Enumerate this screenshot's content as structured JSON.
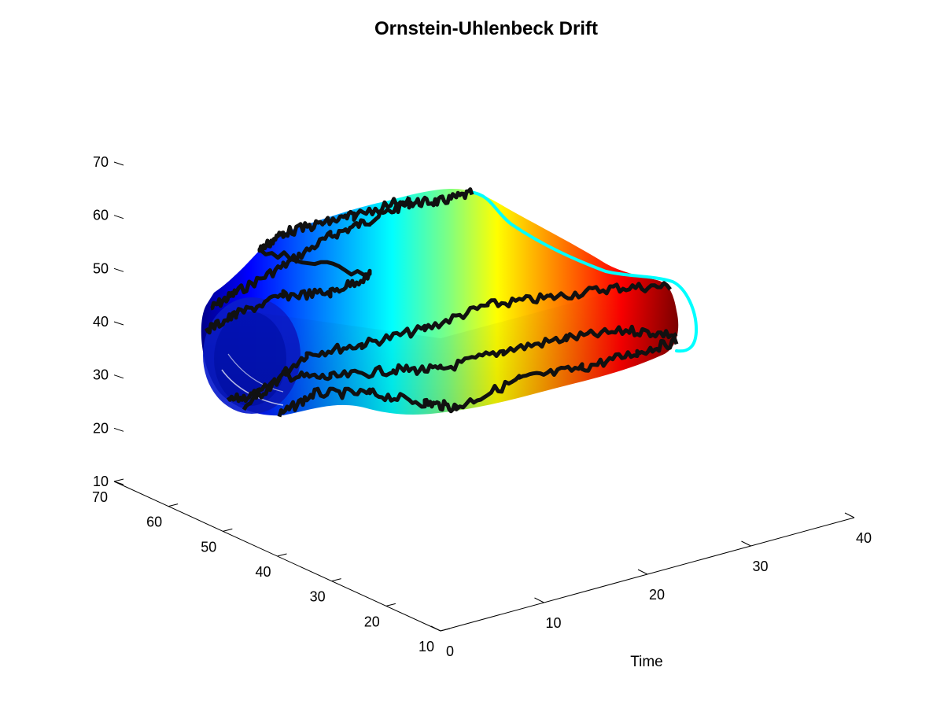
{
  "chart_data": {
    "type": "surface3d",
    "title": "Ornstein-Uhlenbeck Drift",
    "xlabel": "Time",
    "ylabel": "",
    "zlabel": "",
    "xlim": [
      0,
      40
    ],
    "ylim": [
      10,
      70
    ],
    "zlim": [
      10,
      70
    ],
    "x_ticks": [
      "0",
      "10",
      "20",
      "30",
      "40"
    ],
    "y_ticks": [
      "10",
      "20",
      "30",
      "40",
      "50",
      "60",
      "70"
    ],
    "z_ticks": [
      "10",
      "20",
      "30",
      "40",
      "50",
      "60",
      "70"
    ],
    "colormap": [
      "#00008f",
      "#0000ff",
      "#0080ff",
      "#00ffff",
      "#80ff80",
      "#ffff00",
      "#ff8000",
      "#ff0000",
      "#800000"
    ],
    "surface": {
      "description": "Tube-shaped surface of sample paths drifting from around 40 at time 0 toward 45 at time 40, colored by time",
      "time": [
        0,
        5,
        10,
        15,
        20,
        25,
        30,
        35,
        40
      ],
      "center": [
        38,
        40,
        42,
        43,
        44,
        45,
        46,
        47,
        47
      ],
      "spread": [
        14,
        16,
        17,
        17,
        16,
        14,
        12,
        10,
        7
      ]
    },
    "black_paths_count": 5,
    "mean_curve_color": "#00ffff"
  }
}
